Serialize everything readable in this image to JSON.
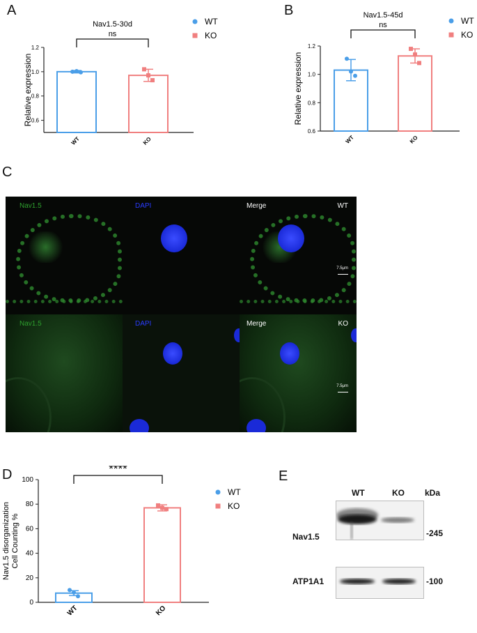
{
  "panels": {
    "a": "A",
    "b": "B",
    "c": "C",
    "d": "D",
    "e": "E"
  },
  "colors": {
    "wt": "#4a9ee8",
    "ko": "#f07f7f",
    "green": "#2ea02e",
    "blue": "#2a3cff"
  },
  "chart_data": [
    {
      "type": "bar",
      "title": "Nav1.5-30d",
      "significance": "ns",
      "ylabel": "Relative expression",
      "xlabel": "",
      "categories": [
        "WT",
        "KO"
      ],
      "ylim": [
        0.5,
        1.2
      ],
      "yticks": [
        "0.6",
        "0.8",
        "1.0",
        "1.2"
      ],
      "series": [
        {
          "name": "WT",
          "value": 1.0,
          "error": 0.01,
          "points": [
            1.0,
            1.005,
            0.995
          ]
        },
        {
          "name": "KO",
          "value": 0.97,
          "error": 0.05,
          "points": [
            1.02,
            0.97,
            0.93
          ]
        }
      ],
      "legend": [
        "WT",
        "KO"
      ]
    },
    {
      "type": "bar",
      "title": "Nav1.5-45d",
      "significance": "ns",
      "ylabel": "Relative expression",
      "xlabel": "",
      "categories": [
        "WT",
        "KO"
      ],
      "ylim": [
        0.6,
        1.2
      ],
      "yticks": [
        "0.6",
        "0.8",
        "1.0",
        "1.2"
      ],
      "series": [
        {
          "name": "WT",
          "value": 1.03,
          "error": 0.075,
          "points": [
            1.11,
            1.02,
            0.99
          ]
        },
        {
          "name": "KO",
          "value": 1.13,
          "error": 0.05,
          "points": [
            1.18,
            1.14,
            1.08
          ]
        }
      ],
      "legend": [
        "WT",
        "KO"
      ]
    },
    {
      "type": "bar",
      "title": "",
      "significance": "****",
      "ylabel": "Nav1.5 disorganization Cell Counting %",
      "ylabel_lines": [
        "Nav1.5 disorganization",
        "Cell Counting %"
      ],
      "xlabel": "",
      "categories": [
        "WT",
        "KO"
      ],
      "ylim": [
        0,
        100
      ],
      "yticks": [
        "0",
        "20",
        "40",
        "60",
        "80",
        "100"
      ],
      "series": [
        {
          "name": "WT",
          "value": 7.5,
          "error": 2,
          "points": [
            10,
            8,
            5
          ]
        },
        {
          "name": "KO",
          "value": 77,
          "error": 2.5,
          "points": [
            79,
            77,
            76
          ]
        }
      ],
      "legend": [
        "WT",
        "KO"
      ]
    }
  ],
  "microscopy": {
    "rows": [
      {
        "genotype": "WT",
        "channels": [
          "Nav1.5",
          "DAPI",
          "Merge"
        ],
        "scale_bar": "7.5μm"
      },
      {
        "genotype": "KO",
        "channels": [
          "Nav1.5",
          "DAPI",
          "Merge"
        ],
        "scale_bar": "7.5μm"
      }
    ]
  },
  "western_blot": {
    "lanes": [
      "WT",
      "KO"
    ],
    "unit": "kDa",
    "bands": [
      {
        "protein": "Nav1.5",
        "marker": "-245"
      },
      {
        "protein": "ATP1A1",
        "marker": "-100"
      }
    ]
  }
}
